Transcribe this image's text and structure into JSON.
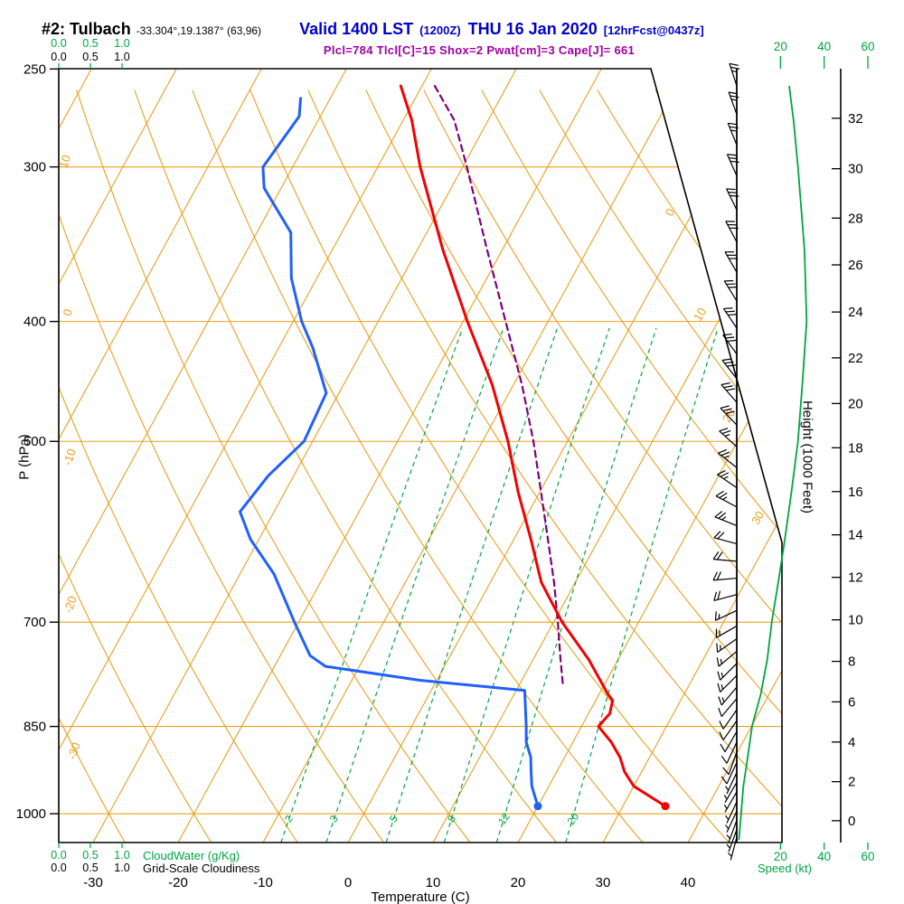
{
  "header": {
    "station": "#2: Tulbach",
    "coords": "-33.304°,19.1387° (63,96)",
    "valid": "Valid 1400 LST",
    "zulu": "(1200Z)",
    "date": "THU 16 Jan 2020",
    "fcst": "[12hrFcst@0437z]"
  },
  "params_line": "Plcl=784 Tlcl[C]=15 Shox=2 Pwat[cm]=3 Cape[J]= 661",
  "axes": {
    "pressure": {
      "label": "P (hPa)",
      "ticks": [
        250,
        300,
        400,
        500,
        700,
        850,
        1000
      ]
    },
    "temperature": {
      "label": "Temperature (C)",
      "ticks": [
        -30,
        -20,
        -10,
        0,
        10,
        20,
        30,
        40
      ]
    },
    "height": {
      "label": "Height (1000 Feet)",
      "ticks": [
        0,
        2,
        4,
        6,
        8,
        10,
        12,
        14,
        16,
        18,
        20,
        22,
        24,
        26,
        28,
        30,
        32
      ],
      "std_atm_ft_hpa": [
        [
          0,
          1013
        ],
        [
          2,
          942
        ],
        [
          4,
          875
        ],
        [
          6,
          812
        ],
        [
          8,
          753
        ],
        [
          10,
          697
        ],
        [
          12,
          644
        ],
        [
          14,
          595
        ],
        [
          16,
          549
        ],
        [
          18,
          506
        ],
        [
          20,
          466
        ],
        [
          22,
          428
        ],
        [
          24,
          393
        ],
        [
          26,
          360
        ],
        [
          28,
          330
        ],
        [
          30,
          301
        ],
        [
          32,
          274
        ]
      ]
    },
    "speed": {
      "label": "Speed (kt)",
      "ticks": [
        20,
        40,
        60
      ],
      "max_kt": 60
    },
    "cloudwater": {
      "label": "CloudWater (g/Kg)",
      "ticks": [
        "0.0",
        "0.5",
        "1.0"
      ]
    },
    "cloudiness": {
      "label": "Grid-Scale Cloudiness",
      "ticks": [
        "0.0",
        "0.5",
        "1.0"
      ]
    }
  },
  "colors": {
    "orange": "#E8A020",
    "green": "#00A540",
    "red": "#F40000",
    "blue": "#2060FF",
    "purple": "#7D007D",
    "title_blue": "#0000CC",
    "params_text": "#A000A0",
    "black": "#000000"
  },
  "chart_data": {
    "type": "line",
    "subtype": "skew-t log-p sounding",
    "pressure_range_hpa": [
      250,
      1055
    ],
    "temperature_axis_range_c": [
      -30,
      40
    ],
    "isotherm_interval_c": 10,
    "grid": "on",
    "surface": {
      "pressure_hpa": 986,
      "temp_c": 35,
      "dewpoint_c": 20
    },
    "temperature_profile": {
      "name": "Temperature",
      "color": "red",
      "points_p_hpa_t_c": [
        [
          986,
          35
        ],
        [
          950,
          30
        ],
        [
          925,
          28
        ],
        [
          900,
          26.5
        ],
        [
          875,
          24.5
        ],
        [
          850,
          22
        ],
        [
          830,
          22.5
        ],
        [
          810,
          22
        ],
        [
          800,
          21
        ],
        [
          750,
          16.5
        ],
        [
          700,
          11
        ],
        [
          650,
          6
        ],
        [
          600,
          2
        ],
        [
          550,
          -2.5
        ],
        [
          500,
          -7
        ],
        [
          450,
          -12.5
        ],
        [
          400,
          -19.5
        ],
        [
          350,
          -27
        ],
        [
          300,
          -35
        ],
        [
          275,
          -39
        ],
        [
          258,
          -42.5
        ]
      ]
    },
    "dewpoint_profile": {
      "name": "Dewpoint",
      "color": "blue",
      "points_p_hpa_t_c": [
        [
          986,
          20
        ],
        [
          950,
          18
        ],
        [
          925,
          17
        ],
        [
          900,
          16
        ],
        [
          875,
          14.5
        ],
        [
          850,
          13.5
        ],
        [
          795,
          11
        ],
        [
          780,
          -2
        ],
        [
          760,
          -14
        ],
        [
          745,
          -16.5
        ],
        [
          700,
          -20.5
        ],
        [
          640,
          -26
        ],
        [
          600,
          -31
        ],
        [
          570,
          -34
        ],
        [
          533,
          -33
        ],
        [
          500,
          -31
        ],
        [
          457,
          -31.5
        ],
        [
          420,
          -36
        ],
        [
          400,
          -39
        ],
        [
          369,
          -43
        ],
        [
          339,
          -46
        ],
        [
          312,
          -52
        ],
        [
          300,
          -53.5
        ],
        [
          273,
          -52.5
        ],
        [
          264,
          -53.5
        ]
      ]
    },
    "parcel_path": {
      "name": "Parcel ascent",
      "color": "purple",
      "style": "dashed",
      "points_p_hpa_t_c": [
        [
          784,
          15
        ],
        [
          750,
          13.2
        ],
        [
          700,
          10.5
        ],
        [
          650,
          7.5
        ],
        [
          600,
          4
        ],
        [
          550,
          0.2
        ],
        [
          500,
          -4
        ],
        [
          450,
          -9
        ],
        [
          400,
          -15
        ],
        [
          350,
          -21.8
        ],
        [
          300,
          -29.5
        ],
        [
          275,
          -34
        ],
        [
          258,
          -38.5
        ]
      ]
    },
    "wind_speed_profile": {
      "name": "Speed (kt)",
      "color": "green",
      "points_p_hpa_kt": [
        [
          1050,
          1
        ],
        [
          1000,
          2
        ],
        [
          950,
          3
        ],
        [
          900,
          5
        ],
        [
          850,
          7
        ],
        [
          800,
          11
        ],
        [
          750,
          14
        ],
        [
          700,
          16
        ],
        [
          650,
          19
        ],
        [
          600,
          22
        ],
        [
          550,
          25
        ],
        [
          500,
          28
        ],
        [
          450,
          30
        ],
        [
          400,
          32
        ],
        [
          350,
          31
        ],
        [
          300,
          28
        ],
        [
          275,
          26
        ],
        [
          258,
          24
        ]
      ]
    },
    "wind_barbs_p_dir_kt": [
      [
        1045,
        195,
        3
      ],
      [
        1030,
        200,
        4
      ],
      [
        1012,
        200,
        5
      ],
      [
        995,
        205,
        5
      ],
      [
        978,
        205,
        6
      ],
      [
        960,
        210,
        6
      ],
      [
        943,
        210,
        7
      ],
      [
        926,
        205,
        7
      ],
      [
        909,
        205,
        8
      ],
      [
        892,
        200,
        9
      ],
      [
        875,
        205,
        10
      ],
      [
        858,
        210,
        10
      ],
      [
        841,
        215,
        11
      ],
      [
        824,
        215,
        12
      ],
      [
        807,
        220,
        12
      ],
      [
        790,
        220,
        13
      ],
      [
        773,
        225,
        13
      ],
      [
        756,
        225,
        14
      ],
      [
        739,
        230,
        15
      ],
      [
        722,
        235,
        15
      ],
      [
        705,
        240,
        16
      ],
      [
        685,
        245,
        17
      ],
      [
        665,
        255,
        18
      ],
      [
        645,
        265,
        19
      ],
      [
        625,
        275,
        20
      ],
      [
        605,
        285,
        21
      ],
      [
        585,
        292,
        23
      ],
      [
        565,
        298,
        24
      ],
      [
        545,
        304,
        25
      ],
      [
        525,
        308,
        26
      ],
      [
        505,
        312,
        27
      ],
      [
        485,
        316,
        28
      ],
      [
        465,
        319,
        29
      ],
      [
        445,
        322,
        30
      ],
      [
        425,
        324,
        31
      ],
      [
        405,
        326,
        32
      ],
      [
        385,
        328,
        32
      ],
      [
        365,
        330,
        31
      ],
      [
        345,
        332,
        30
      ],
      [
        325,
        334,
        29
      ],
      [
        305,
        336,
        28
      ],
      [
        288,
        338,
        27
      ],
      [
        272,
        340,
        26
      ],
      [
        258,
        342,
        25
      ]
    ],
    "mixing_ratio_lines_gkg": [
      2,
      3,
      5,
      8,
      12,
      20
    ],
    "dry_adiabat_labels_c": [
      10,
      0,
      -10,
      -20,
      -30
    ],
    "isotherm_labels_right_c": [
      0,
      10,
      20,
      30
    ],
    "indices": {
      "Plcl": 784,
      "Tlcl_C": 15,
      "Shox": 2,
      "Pwat_cm": 3,
      "Cape_J": 661
    }
  }
}
